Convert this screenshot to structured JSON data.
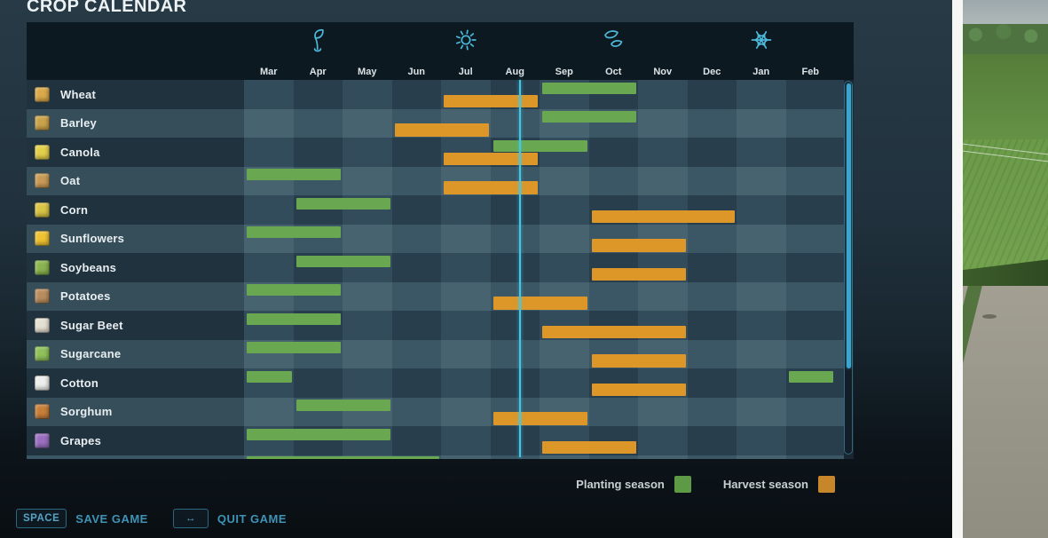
{
  "title": "CROP CALENDAR",
  "months": [
    "Mar",
    "Apr",
    "May",
    "Jun",
    "Jul",
    "Aug",
    "Sep",
    "Oct",
    "Nov",
    "Dec",
    "Jan",
    "Feb"
  ],
  "seasons": [
    {
      "icon": "seedling-icon",
      "month_index": 1
    },
    {
      "icon": "sun-icon",
      "month_index": 4
    },
    {
      "icon": "falling-leaves-icon",
      "month_index": 7
    },
    {
      "icon": "snowflake-icon",
      "month_index": 10
    }
  ],
  "crops": [
    {
      "name": "Wheat",
      "icon": "wheat-icon",
      "icon_color": "#d9a94a",
      "plant": [
        [
          6,
          2
        ]
      ],
      "harvest": [
        [
          4,
          2
        ]
      ]
    },
    {
      "name": "Barley",
      "icon": "barley-icon",
      "icon_color": "#c9a24a",
      "plant": [
        [
          6,
          2
        ]
      ],
      "harvest": [
        [
          3,
          2
        ]
      ]
    },
    {
      "name": "Canola",
      "icon": "canola-icon",
      "icon_color": "#e3cf4b",
      "plant": [
        [
          5,
          2
        ]
      ],
      "harvest": [
        [
          4,
          2
        ]
      ]
    },
    {
      "name": "Oat",
      "icon": "oat-icon",
      "icon_color": "#c89a56",
      "plant": [
        [
          0,
          2
        ]
      ],
      "harvest": [
        [
          4,
          2
        ]
      ]
    },
    {
      "name": "Corn",
      "icon": "corn-icon",
      "icon_color": "#d9c445",
      "plant": [
        [
          1,
          2
        ]
      ],
      "harvest": [
        [
          7,
          3
        ]
      ]
    },
    {
      "name": "Sunflowers",
      "icon": "sunflower-icon",
      "icon_color": "#eec231",
      "plant": [
        [
          0,
          2
        ]
      ],
      "harvest": [
        [
          7,
          2
        ]
      ]
    },
    {
      "name": "Soybeans",
      "icon": "soybeans-icon",
      "icon_color": "#8ab34f",
      "plant": [
        [
          1,
          2
        ]
      ],
      "harvest": [
        [
          7,
          2
        ]
      ]
    },
    {
      "name": "Potatoes",
      "icon": "potatoes-icon",
      "icon_color": "#b98d5f",
      "plant": [
        [
          0,
          2
        ]
      ],
      "harvest": [
        [
          5,
          2
        ]
      ]
    },
    {
      "name": "Sugar Beet",
      "icon": "sugar-beet-icon",
      "icon_color": "#e4e0d2",
      "plant": [
        [
          0,
          2
        ]
      ],
      "harvest": [
        [
          6,
          3
        ]
      ]
    },
    {
      "name": "Sugarcane",
      "icon": "sugarcane-icon",
      "icon_color": "#8fc05a",
      "plant": [
        [
          0,
          2
        ]
      ],
      "harvest": [
        [
          7,
          2
        ]
      ]
    },
    {
      "name": "Cotton",
      "icon": "cotton-icon",
      "icon_color": "#edefec",
      "plant": [
        [
          0,
          1
        ],
        [
          11,
          1
        ]
      ],
      "harvest": [
        [
          7,
          2
        ]
      ]
    },
    {
      "name": "Sorghum",
      "icon": "sorghum-icon",
      "icon_color": "#c77f3a",
      "plant": [
        [
          1,
          2
        ]
      ],
      "harvest": [
        [
          5,
          2
        ]
      ]
    },
    {
      "name": "Grapes",
      "icon": "grapes-icon",
      "icon_color": "#9b6fc0",
      "plant": [
        [
          0,
          3
        ]
      ],
      "harvest": [
        [
          6,
          2
        ]
      ]
    }
  ],
  "partial_next_row": {
    "plant": [
      [
        0,
        4
      ]
    ]
  },
  "current_time": {
    "month_position": 5.59
  },
  "legend": {
    "planting_label": "Planting season",
    "harvest_label": "Harvest season"
  },
  "footer": {
    "buttons": [
      {
        "key": "SPACE",
        "key_icon": "space-key",
        "label": "SAVE GAME"
      },
      {
        "key": "↔",
        "key_icon": "left-right-arrow-icon",
        "label": "QUIT GAME"
      }
    ]
  },
  "colors": {
    "planting": "#69a750",
    "harvest": "#dd9729",
    "legend_planting": "#5e9a46",
    "legend_harvest": "#c8862b",
    "accent_cyan": "#41c8e8",
    "icon_cyan": "#4cb9da"
  }
}
